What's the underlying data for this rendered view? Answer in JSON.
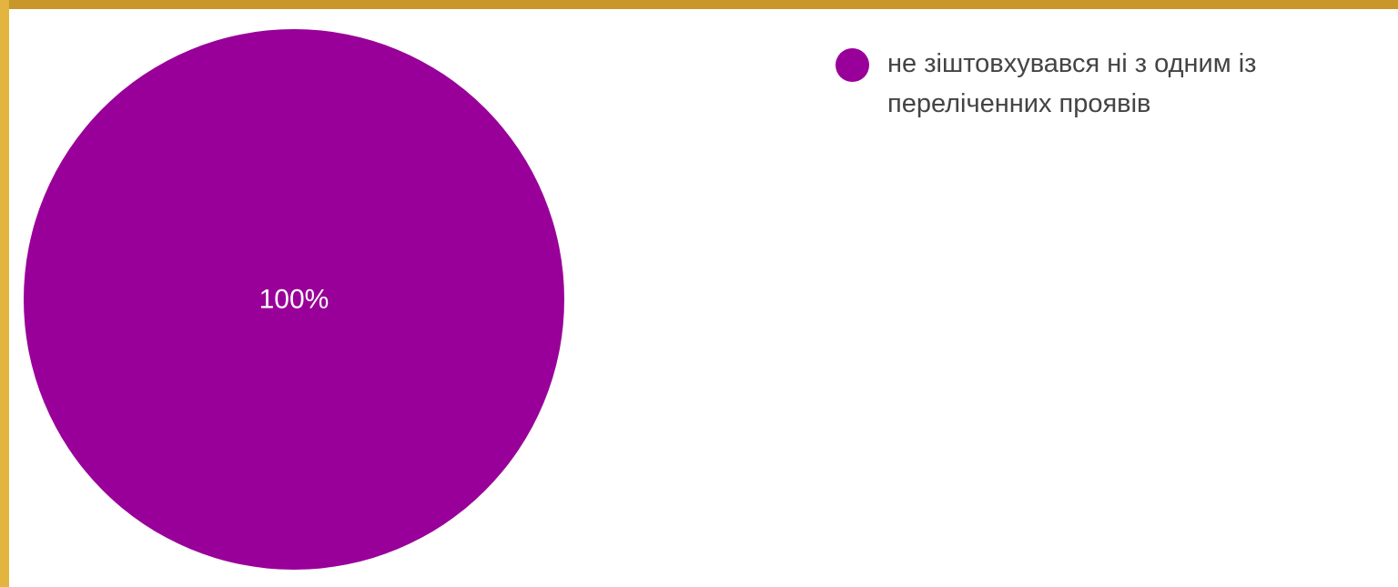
{
  "theme": {
    "frame_top_color": "#c9962a",
    "frame_left_color": "#e3b43e",
    "background": "#ffffff",
    "slice_label_color": "#ffffff",
    "legend_text_color": "#444444"
  },
  "chart_data": {
    "type": "pie",
    "slices": [
      {
        "label": "не зіштовхувався ні з одним із переліченних проявів",
        "value": 100,
        "display": "100%",
        "color": "#990099"
      }
    ],
    "legend": {
      "position": "right"
    }
  }
}
